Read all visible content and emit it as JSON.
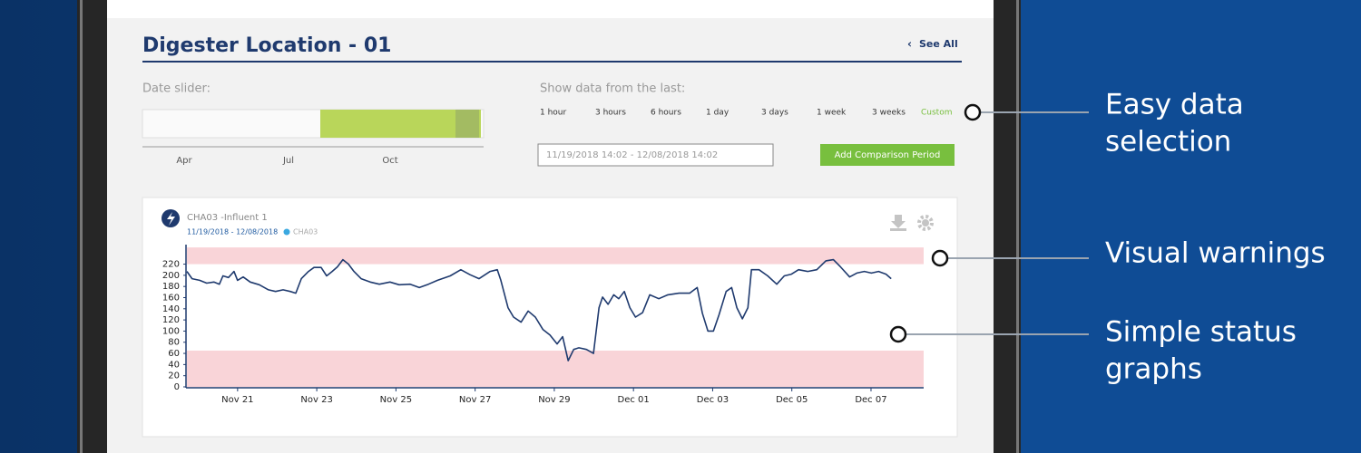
{
  "header": {
    "title": "Digester Location - 01",
    "see_all": "See All"
  },
  "date_slider": {
    "label": "Date slider:",
    "months": [
      "Apr",
      "Jul",
      "Oct"
    ]
  },
  "range": {
    "label": "Show data from the last:",
    "options": [
      "1 hour",
      "3 hours",
      "6 hours",
      "1 day",
      "3 days",
      "1 week",
      "3 weeks",
      "Custom"
    ]
  },
  "date_input": "11/19/2018 14:02 - 12/08/2018 14:02",
  "button": "Add Comparison Period",
  "card": {
    "title": "CHA03 -Influent 1",
    "date_range": "11/19/2018 - 12/08/2018"
  },
  "chart_data": {
    "type": "line",
    "x": [
      19.72,
      19.85,
      20.04,
      20.22,
      20.4,
      20.54,
      20.63,
      20.77,
      20.91,
      21.0,
      21.14,
      21.32,
      21.55,
      21.78,
      21.96,
      22.15,
      22.33,
      22.47,
      22.61,
      22.79,
      22.93,
      23.11,
      23.25,
      23.39,
      23.52,
      23.66,
      23.8,
      23.94,
      24.12,
      24.35,
      24.58,
      24.85,
      25.08,
      25.36,
      25.59,
      25.82,
      26.05,
      26.37,
      26.64,
      26.87,
      27.1,
      27.38,
      27.56,
      27.65,
      27.83,
      27.97,
      28.16,
      28.34,
      28.52,
      28.71,
      28.89,
      29.07,
      29.21,
      29.35,
      29.49,
      29.62,
      29.81,
      29.99,
      30.13,
      30.22,
      30.36,
      30.5,
      30.63,
      30.77,
      30.91,
      31.05,
      31.23,
      31.41,
      31.64,
      31.87,
      32.15,
      32.42,
      32.61,
      32.74,
      32.88,
      33.02,
      33.16,
      33.34,
      33.48,
      33.61,
      33.75,
      33.89,
      33.98,
      34.17,
      34.39,
      34.62,
      34.81,
      34.99,
      35.17,
      35.4,
      35.63,
      35.86,
      36.05,
      36.23,
      36.46,
      36.64,
      36.83,
      37.01,
      37.19,
      37.38,
      37.51
    ],
    "series": [
      {
        "name": "CHA03",
        "color": "#1f3a6e",
        "values": [
          207,
          194,
          191,
          186,
          188,
          184,
          199,
          196,
          207,
          191,
          197,
          188,
          183,
          174,
          171,
          174,
          171,
          168,
          194,
          207,
          214,
          214,
          199,
          207,
          215,
          228,
          220,
          207,
          194,
          188,
          184,
          188,
          183,
          184,
          178,
          184,
          191,
          199,
          210,
          201,
          194,
          207,
          210,
          191,
          142,
          125,
          116,
          136,
          125,
          103,
          93,
          77,
          90,
          47,
          67,
          70,
          67,
          60,
          142,
          161,
          148,
          165,
          158,
          171,
          142,
          125,
          133,
          165,
          158,
          165,
          168,
          168,
          178,
          132,
          100,
          100,
          129,
          171,
          178,
          142,
          122,
          142,
          210,
          210,
          199,
          184,
          199,
          202,
          210,
          207,
          210,
          226,
          228,
          215,
          197,
          204,
          207,
          204,
          207,
          202,
          194
        ]
      }
    ],
    "xlim": [
      19.72,
      38.33
    ],
    "xticks": [
      {
        "value": 21,
        "label": "Nov 21"
      },
      {
        "value": 23,
        "label": "Nov 23"
      },
      {
        "value": 25,
        "label": "Nov 25"
      },
      {
        "value": 27,
        "label": "Nov 27"
      },
      {
        "value": 29,
        "label": "Nov 29"
      },
      {
        "value": 31,
        "label": "Dec 01"
      },
      {
        "value": 33,
        "label": "Dec 03"
      },
      {
        "value": 35,
        "label": "Dec 05"
      },
      {
        "value": 37,
        "label": "Dec 07"
      }
    ],
    "ylim": [
      0,
      255
    ],
    "yticks": [
      0,
      20,
      40,
      60,
      80,
      100,
      120,
      140,
      160,
      180,
      200,
      220
    ],
    "bands": [
      {
        "from": 0,
        "to": 65,
        "color": "#f9d4d8"
      },
      {
        "from": 220,
        "to": 250,
        "color": "#f9d4d8"
      }
    ]
  },
  "callouts": [
    {
      "lines": [
        "Easy data",
        "selection"
      ]
    },
    {
      "lines": [
        "Visual warnings"
      ]
    },
    {
      "lines": [
        "Simple status",
        "graphs"
      ]
    }
  ]
}
